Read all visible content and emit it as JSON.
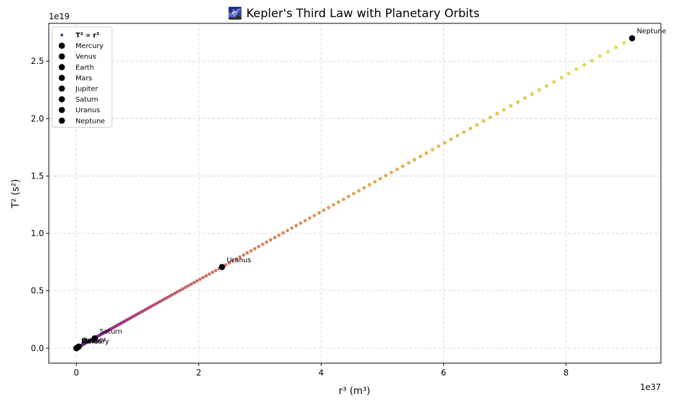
{
  "chart_data": {
    "type": "scatter",
    "title": "🌌 Kepler's Third Law with Planetary Orbits",
    "xlabel": "r³ (m³)",
    "ylabel": "T² (s²)",
    "x_offset_label": "1e37",
    "y_offset_label": "1e19",
    "xlim": [
      -0.45,
      9.55
    ],
    "ylim": [
      -0.13,
      2.83
    ],
    "x_ticks": [
      0,
      2,
      4,
      6,
      8
    ],
    "x_tick_labels": [
      "0",
      "2",
      "4",
      "6",
      "8"
    ],
    "y_ticks": [
      0.0,
      0.5,
      1.0,
      1.5,
      2.0,
      2.5
    ],
    "y_tick_labels": [
      "0.0",
      "0.5",
      "1.0",
      "1.5",
      "2.0",
      "2.5"
    ],
    "grid": true,
    "legend_position": "top-left",
    "trend": {
      "name": "T² ∝ r³",
      "x_max": 9.08,
      "slope": 0.2973,
      "n_points": 200,
      "colormap": "plasma"
    },
    "planets": [
      {
        "name": "Mercury",
        "x": 0.00022,
        "y": 5.8e-05
      },
      {
        "name": "Venus",
        "x": 0.0039,
        "y": 0.00038
      },
      {
        "name": "Earth",
        "x": 0.0034,
        "y": 0.00099
      },
      {
        "name": "Mars",
        "x": 0.0117,
        "y": 0.0035
      },
      {
        "name": "Jupiter",
        "x": 0.04,
        "y": 0.0141
      },
      {
        "name": "Saturn",
        "x": 0.3,
        "y": 0.0863
      },
      {
        "name": "Uranus",
        "x": 2.38,
        "y": 0.7075
      },
      {
        "name": "Neptune",
        "x": 9.08,
        "y": 2.7
      }
    ],
    "planet_color": "#000000"
  }
}
